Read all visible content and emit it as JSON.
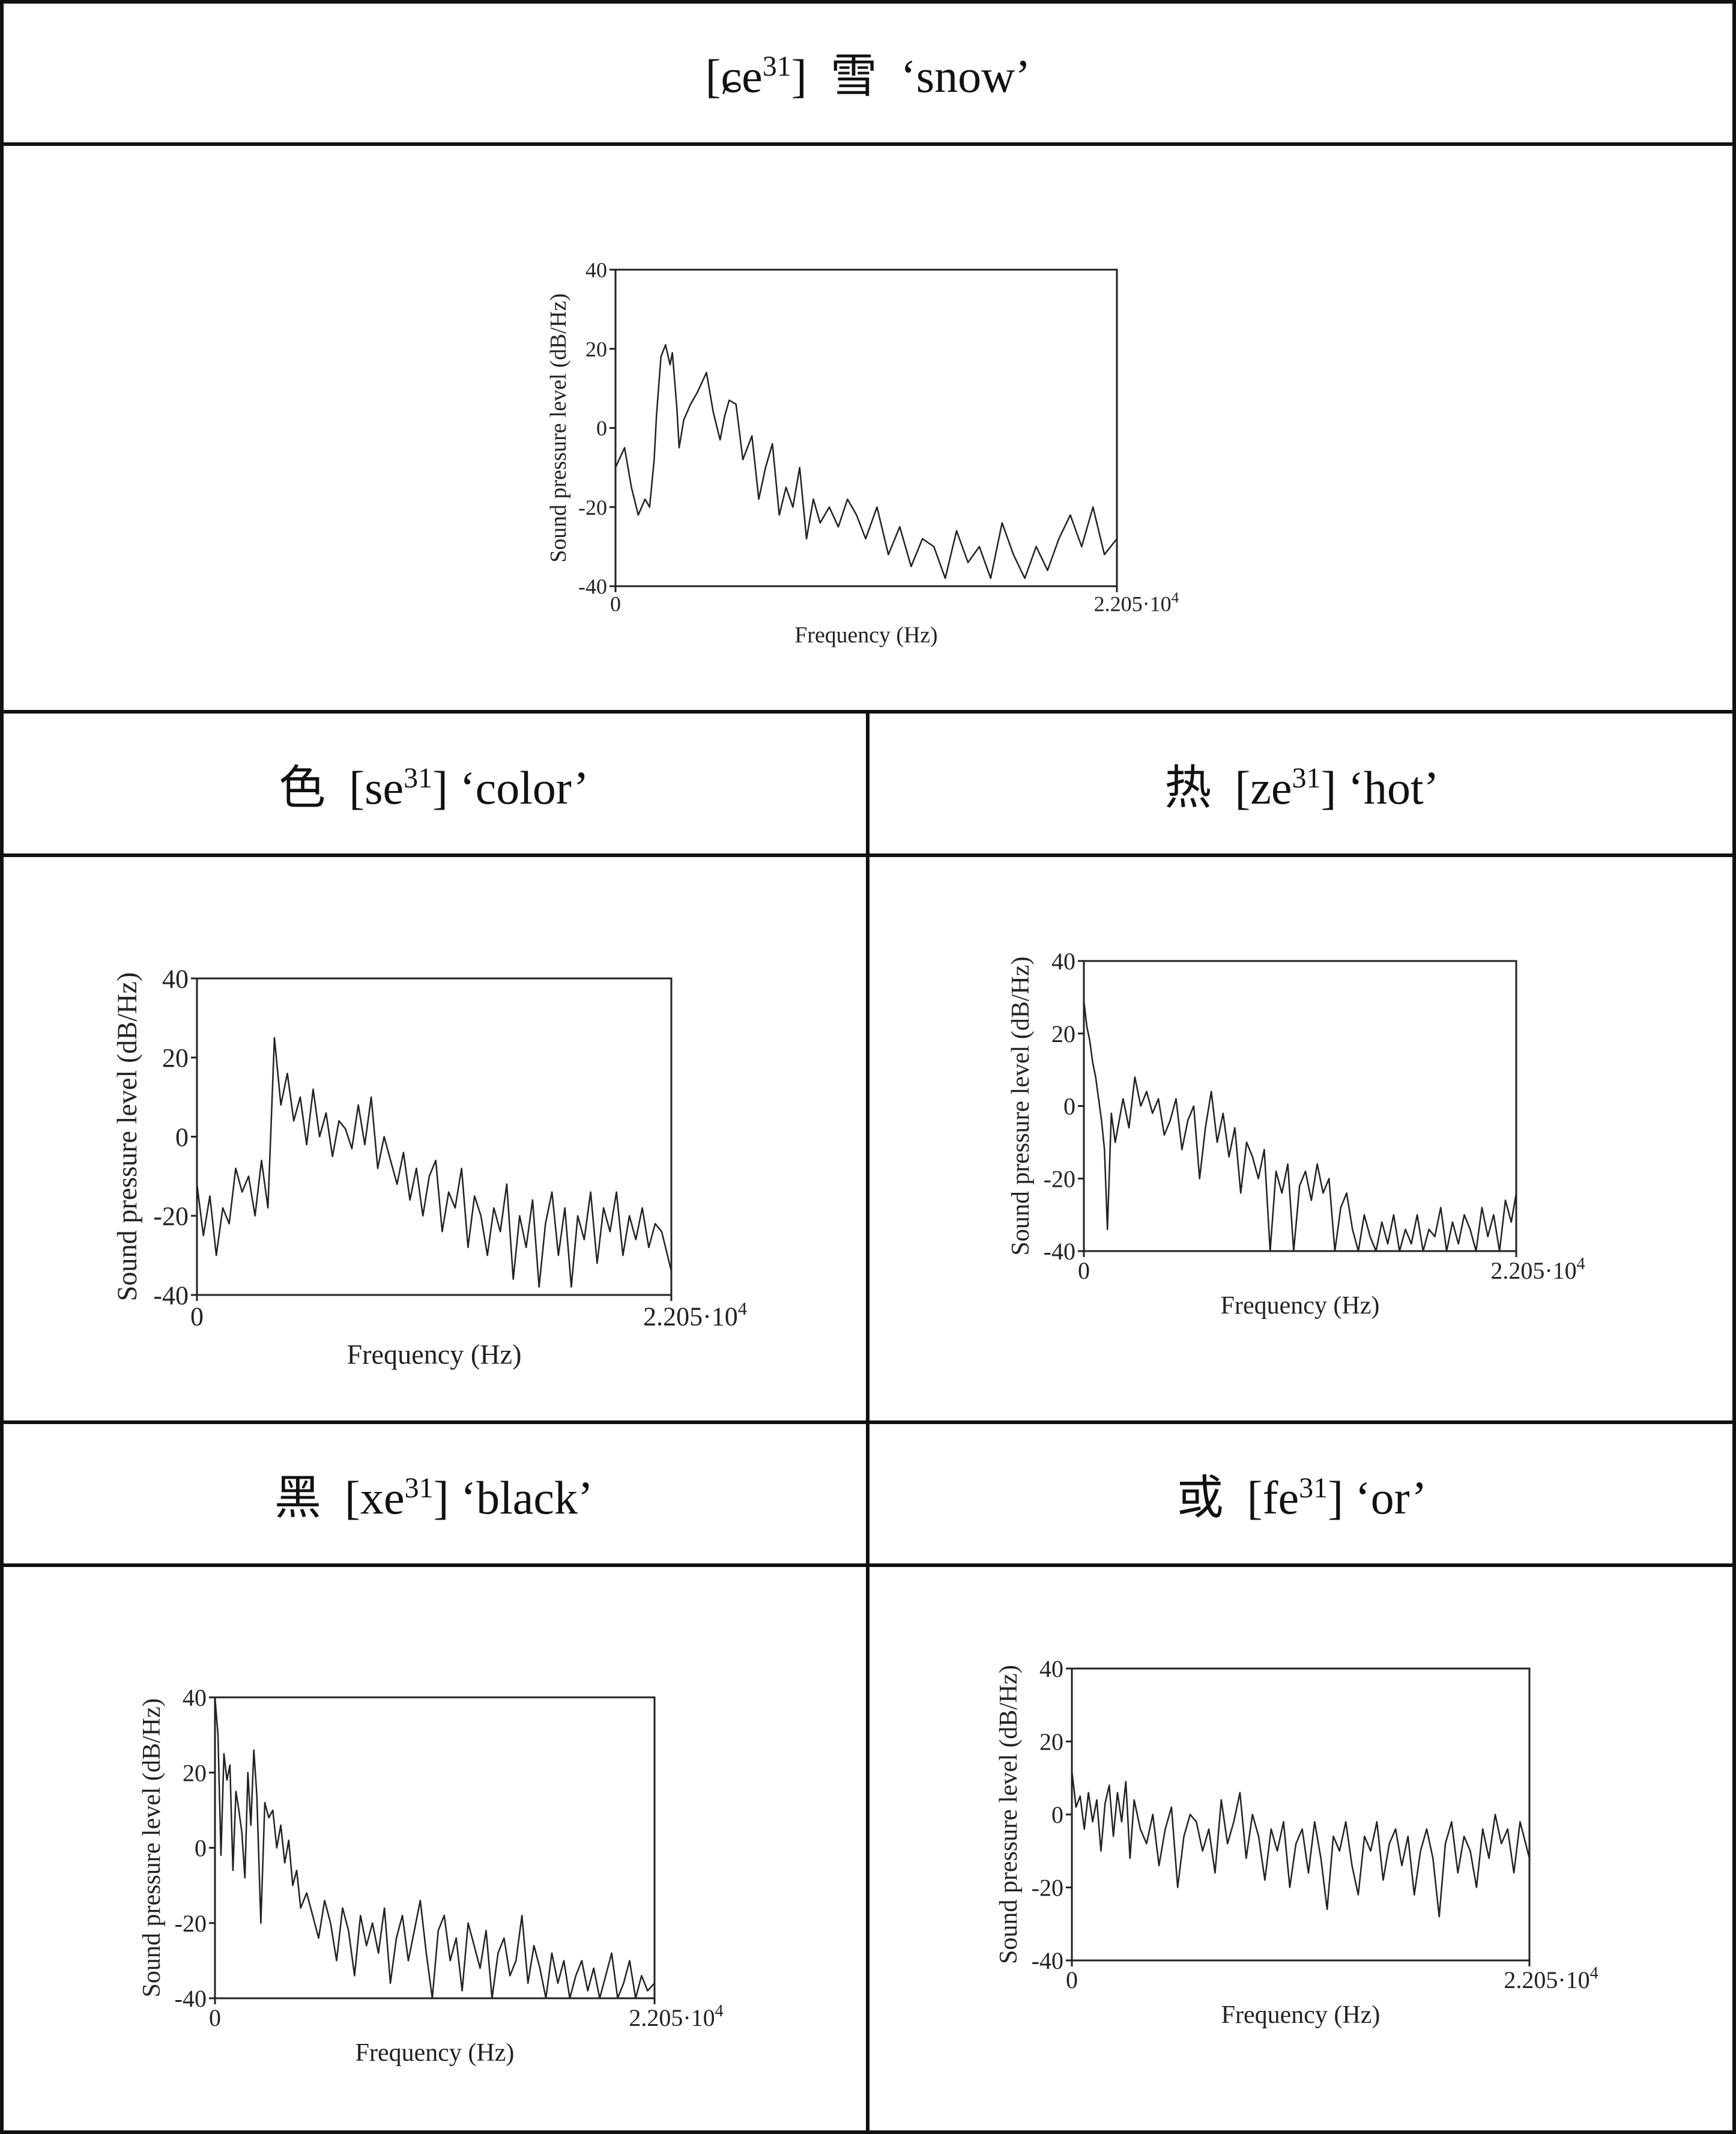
{
  "panels": [
    {
      "id": "snow",
      "title": {
        "lead": "[ɕe",
        "tone": "31",
        "trail": "]  雪  ‘snow’"
      },
      "chart_data": {
        "type": "line",
        "xlabel": "Frequency (Hz)",
        "ylabel": "Sound pressure level (dB/Hz)",
        "xlim": [
          0,
          22050
        ],
        "ylim": [
          -40,
          40
        ],
        "x_ticks": [
          "0",
          "2.205·10"
        ],
        "x_tick_exp": "4",
        "y_ticks": [
          "40",
          "20",
          "0",
          "-20",
          "-40"
        ],
        "series": [
          {
            "x": [
              0,
              400,
              700,
              1000,
              1300,
              1500,
              1700,
              1800,
              2000,
              2200,
              2400,
              2500,
              2600,
              2700,
              2800,
              3000,
              3300,
              3600,
              4000,
              4300,
              4600,
              4800,
              5000,
              5300,
              5600,
              6000,
              6300,
              6600,
              6900,
              7200,
              7500,
              7800,
              8100,
              8400,
              8700,
              9000,
              9400,
              9800,
              10200,
              10600,
              11000,
              11500,
              12000,
              12500,
              13000,
              13500,
              14000,
              14500,
              15000,
              15500,
              16000,
              16500,
              17000,
              17500,
              18000,
              18500,
              19000,
              19500,
              20000,
              20500,
              21000,
              21500,
              22050
            ],
            "y": [
              -10,
              -5,
              -15,
              -22,
              -18,
              -20,
              -8,
              3,
              18,
              21,
              16,
              19,
              12,
              5,
              -5,
              2,
              6,
              9,
              14,
              4,
              -3,
              3,
              7,
              6,
              -8,
              -2,
              -18,
              -10,
              -4,
              -22,
              -15,
              -20,
              -10,
              -28,
              -18,
              -24,
              -20,
              -25,
              -18,
              -22,
              -28,
              -20,
              -32,
              -25,
              -35,
              -28,
              -30,
              -38,
              -26,
              -34,
              -30,
              -38,
              -24,
              -32,
              -38,
              -30,
              -36,
              -28,
              -22,
              -30,
              -20,
              -32,
              -28
            ]
          }
        ]
      }
    },
    {
      "id": "color",
      "title": {
        "lead": "色  [se",
        "tone": "31",
        "trail": "] ‘color’"
      },
      "chart_data": {
        "type": "line",
        "xlabel": "Frequency (Hz)",
        "ylabel": "Sound pressure level (dB/Hz)",
        "xlim": [
          0,
          22050
        ],
        "ylim": [
          -40,
          40
        ],
        "x_ticks": [
          "0",
          "2.205·10"
        ],
        "x_tick_exp": "4",
        "y_ticks": [
          "40",
          "20",
          "0",
          "-20",
          "-40"
        ],
        "series": [
          {
            "x": [
              0,
              300,
              600,
              900,
              1200,
              1500,
              1800,
              2100,
              2400,
              2700,
              3000,
              3300,
              3600,
              3900,
              4200,
              4500,
              4800,
              5100,
              5400,
              5700,
              6000,
              6300,
              6600,
              6900,
              7200,
              7500,
              7800,
              8100,
              8400,
              8700,
              9000,
              9300,
              9600,
              9900,
              10200,
              10500,
              10800,
              11100,
              11400,
              11700,
              12000,
              12300,
              12600,
              12900,
              13200,
              13500,
              13800,
              14100,
              14400,
              14700,
              15000,
              15300,
              15600,
              15900,
              16200,
              16500,
              16800,
              17100,
              17400,
              17700,
              18000,
              18300,
              18600,
              18900,
              19200,
              19500,
              19800,
              20100,
              20400,
              20700,
              21000,
              21300,
              21600,
              22050
            ],
            "y": [
              -12,
              -25,
              -15,
              -30,
              -18,
              -22,
              -8,
              -14,
              -10,
              -20,
              -6,
              -18,
              25,
              8,
              16,
              4,
              10,
              -2,
              12,
              0,
              6,
              -5,
              4,
              2,
              -3,
              8,
              -2,
              10,
              -8,
              0,
              -6,
              -12,
              -4,
              -16,
              -8,
              -20,
              -10,
              -6,
              -24,
              -14,
              -18,
              -8,
              -28,
              -15,
              -20,
              -30,
              -18,
              -24,
              -12,
              -36,
              -20,
              -28,
              -16,
              -38,
              -22,
              -14,
              -30,
              -18,
              -38,
              -20,
              -26,
              -14,
              -32,
              -18,
              -24,
              -14,
              -30,
              -20,
              -26,
              -18,
              -28,
              -22,
              -24,
              -34
            ]
          }
        ]
      }
    },
    {
      "id": "hot",
      "title": {
        "lead": "热  [ze",
        "tone": "31",
        "trail": "] ‘hot’"
      },
      "chart_data": {
        "type": "line",
        "xlabel": "Frequency (Hz)",
        "ylabel": "Sound pressure level (dB/Hz)",
        "xlim": [
          0,
          22050
        ],
        "ylim": [
          -40,
          40
        ],
        "x_ticks": [
          "0",
          "2.205·10"
        ],
        "x_tick_exp": "4",
        "y_ticks": [
          "40",
          "20",
          "0",
          "-20",
          "-40"
        ],
        "series": [
          {
            "x": [
              0,
              150,
              300,
              450,
              600,
              750,
              900,
              1050,
              1200,
              1400,
              1600,
              1800,
              2000,
              2300,
              2600,
              2900,
              3200,
              3500,
              3800,
              4100,
              4400,
              4700,
              5000,
              5300,
              5600,
              5900,
              6200,
              6500,
              6800,
              7100,
              7400,
              7700,
              8000,
              8300,
              8600,
              8900,
              9200,
              9500,
              9800,
              10100,
              10400,
              10700,
              11000,
              11300,
              11600,
              11900,
              12200,
              12500,
              12800,
              13100,
              13400,
              13700,
              14000,
              14300,
              14600,
              14900,
              15200,
              15500,
              15800,
              16100,
              16400,
              16700,
              17000,
              17300,
              17600,
              17900,
              18200,
              18500,
              18800,
              19100,
              19400,
              19700,
              20000,
              20300,
              20600,
              20900,
              21200,
              21500,
              21800,
              22050
            ],
            "y": [
              29,
              22,
              18,
              12,
              8,
              2,
              -4,
              -12,
              -34,
              -2,
              -10,
              -4,
              2,
              -6,
              8,
              0,
              4,
              -2,
              2,
              -8,
              -4,
              2,
              -12,
              -4,
              0,
              -20,
              -6,
              4,
              -10,
              -2,
              -14,
              -6,
              -24,
              -10,
              -14,
              -20,
              -12,
              -40,
              -18,
              -24,
              -16,
              -40,
              -22,
              -18,
              -26,
              -16,
              -24,
              -20,
              -40,
              -28,
              -24,
              -34,
              -40,
              -30,
              -36,
              -40,
              -32,
              -38,
              -30,
              -40,
              -34,
              -38,
              -30,
              -40,
              -34,
              -36,
              -28,
              -40,
              -32,
              -38,
              -30,
              -34,
              -40,
              -28,
              -36,
              -30,
              -40,
              -26,
              -32,
              -24
            ]
          }
        ]
      }
    },
    {
      "id": "black",
      "title": {
        "lead": "黑  [xe",
        "tone": "31",
        "trail": "] ‘black’"
      },
      "chart_data": {
        "type": "line",
        "xlabel": "Frequency (Hz)",
        "ylabel": "Sound pressure level (dB/Hz)",
        "xlim": [
          0,
          22050
        ],
        "ylim": [
          -40,
          40
        ],
        "x_ticks": [
          "0",
          "2.205·10"
        ],
        "x_tick_exp": "4",
        "y_ticks": [
          "40",
          "20",
          "0",
          "-20",
          "-40"
        ],
        "series": [
          {
            "x": [
              0,
              150,
              300,
              450,
              600,
              750,
              900,
              1050,
              1200,
              1350,
              1500,
              1650,
              1800,
              1950,
              2100,
              2300,
              2500,
              2700,
              2900,
              3100,
              3300,
              3500,
              3700,
              3900,
              4100,
              4300,
              4600,
              4900,
              5200,
              5500,
              5800,
              6100,
              6400,
              6700,
              7000,
              7300,
              7600,
              7900,
              8200,
              8500,
              8800,
              9100,
              9400,
              9700,
              10000,
              10300,
              10600,
              10900,
              11200,
              11500,
              11800,
              12100,
              12400,
              12700,
              13000,
              13300,
              13600,
              13900,
              14200,
              14500,
              14800,
              15100,
              15400,
              15700,
              16000,
              16300,
              16600,
              16900,
              17200,
              17500,
              17800,
              18100,
              18400,
              18700,
              19000,
              19300,
              19600,
              19900,
              20200,
              20500,
              20800,
              21100,
              21400,
              21700,
              22050
            ],
            "y": [
              40,
              30,
              -2,
              25,
              18,
              22,
              -6,
              15,
              10,
              4,
              -8,
              20,
              6,
              26,
              14,
              -20,
              12,
              8,
              10,
              0,
              6,
              -4,
              2,
              -10,
              -6,
              -16,
              -12,
              -18,
              -24,
              -14,
              -20,
              -30,
              -16,
              -22,
              -34,
              -18,
              -26,
              -20,
              -28,
              -16,
              -36,
              -24,
              -18,
              -30,
              -22,
              -14,
              -28,
              -40,
              -22,
              -18,
              -30,
              -24,
              -38,
              -20,
              -26,
              -32,
              -22,
              -40,
              -28,
              -24,
              -34,
              -30,
              -18,
              -36,
              -26,
              -32,
              -40,
              -28,
              -36,
              -30,
              -40,
              -34,
              -30,
              -38,
              -32,
              -40,
              -34,
              -28,
              -40,
              -36,
              -30,
              -40,
              -34,
              -38,
              -36
            ]
          }
        ]
      }
    },
    {
      "id": "or",
      "title": {
        "lead": "或  [fe",
        "tone": "31",
        "trail": "] ‘or’"
      },
      "chart_data": {
        "type": "line",
        "xlabel": "Frequency (Hz)",
        "ylabel": "Sound pressure level (dB/Hz)",
        "xlim": [
          0,
          22050
        ],
        "ylim": [
          -40,
          40
        ],
        "x_ticks": [
          "0",
          "2.205·10"
        ],
        "x_tick_exp": "4",
        "y_ticks": [
          "40",
          "20",
          "0",
          "-20",
          "-40"
        ],
        "series": [
          {
            "x": [
              0,
              200,
              400,
              600,
              800,
              1000,
              1200,
              1400,
              1600,
              1800,
              2000,
              2200,
              2400,
              2600,
              2800,
              3000,
              3300,
              3600,
              3900,
              4200,
              4500,
              4800,
              5100,
              5400,
              5700,
              6000,
              6300,
              6600,
              6900,
              7200,
              7500,
              7800,
              8100,
              8400,
              8700,
              9000,
              9300,
              9600,
              9900,
              10200,
              10500,
              10800,
              11100,
              11400,
              11700,
              12000,
              12300,
              12600,
              12900,
              13200,
              13500,
              13800,
              14100,
              14400,
              14700,
              15000,
              15300,
              15600,
              15900,
              16200,
              16500,
              16800,
              17100,
              17400,
              17700,
              18000,
              18300,
              18600,
              18900,
              19200,
              19500,
              19800,
              20100,
              20400,
              20700,
              21000,
              21300,
              21600,
              22050
            ],
            "y": [
              12,
              2,
              5,
              -4,
              6,
              -2,
              4,
              -10,
              3,
              8,
              -6,
              6,
              -2,
              9,
              -12,
              4,
              -4,
              -8,
              0,
              -14,
              -4,
              2,
              -20,
              -6,
              0,
              -2,
              -10,
              -4,
              -16,
              4,
              -8,
              -2,
              6,
              -12,
              0,
              -6,
              -18,
              -4,
              -10,
              -2,
              -20,
              -8,
              -4,
              -16,
              -2,
              -12,
              -26,
              -6,
              -10,
              -2,
              -14,
              -22,
              -6,
              -10,
              -2,
              -18,
              -8,
              -4,
              -14,
              -6,
              -22,
              -10,
              -4,
              -12,
              -28,
              -8,
              -2,
              -16,
              -6,
              -10,
              -20,
              -4,
              -12,
              0,
              -8,
              -4,
              -16,
              -2,
              -12
            ]
          }
        ]
      }
    }
  ]
}
